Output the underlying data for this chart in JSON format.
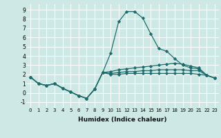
{
  "xlabel": "Humidex (Indice chaleur)",
  "background_color": "#cde8e5",
  "grid_color": "#ffffff",
  "line_color": "#1e6b6b",
  "xlim": [
    -0.5,
    23.5
  ],
  "ylim": [
    -1.6,
    9.6
  ],
  "xticks": [
    0,
    1,
    2,
    3,
    4,
    5,
    6,
    7,
    8,
    9,
    10,
    11,
    12,
    13,
    14,
    15,
    16,
    17,
    18,
    19,
    20,
    21,
    22,
    23
  ],
  "yticks": [
    -1,
    0,
    1,
    2,
    3,
    4,
    5,
    6,
    7,
    8,
    9
  ],
  "series": [
    [
      1.7,
      1.0,
      0.8,
      1.0,
      0.5,
      0.1,
      -0.3,
      -0.6,
      0.4,
      2.2,
      4.3,
      7.7,
      8.8,
      8.8,
      8.1,
      6.4,
      4.8,
      4.5,
      3.7,
      3.0,
      2.7,
      2.6,
      1.9,
      1.6
    ],
    [
      1.7,
      1.0,
      0.8,
      1.0,
      0.5,
      0.1,
      -0.3,
      -0.6,
      0.4,
      2.2,
      2.3,
      2.5,
      2.6,
      2.7,
      2.8,
      2.9,
      3.0,
      3.1,
      3.2,
      3.1,
      2.9,
      2.7,
      1.9,
      1.6
    ],
    [
      1.7,
      1.0,
      0.8,
      1.0,
      0.5,
      0.1,
      -0.3,
      -0.6,
      0.4,
      2.2,
      2.1,
      2.2,
      2.3,
      2.3,
      2.4,
      2.4,
      2.5,
      2.5,
      2.5,
      2.5,
      2.4,
      2.4,
      1.9,
      1.6
    ],
    [
      1.7,
      1.0,
      0.8,
      1.0,
      0.5,
      0.1,
      -0.3,
      -0.6,
      0.4,
      2.2,
      2.0,
      2.0,
      2.1,
      2.1,
      2.1,
      2.1,
      2.1,
      2.1,
      2.1,
      2.1,
      2.1,
      2.0,
      1.9,
      1.6
    ]
  ],
  "marker": "D",
  "markersize": 2.2,
  "linewidth": 0.9,
  "xlabel_fontsize": 6.5,
  "tick_fontsize_x": 5.0,
  "tick_fontsize_y": 5.5
}
